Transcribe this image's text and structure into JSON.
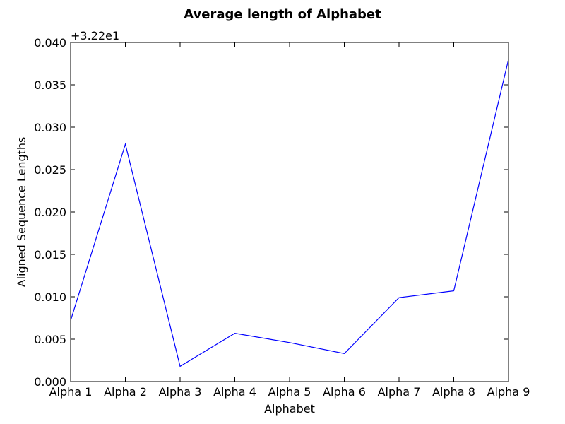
{
  "chart_data": {
    "type": "line",
    "title": "Average length of Alphabet",
    "xlabel": "Alphabet",
    "ylabel": "Aligned Sequence Lengths",
    "offset_label": "+3.22e1",
    "categories": [
      "Alpha 1",
      "Alpha 2",
      "Alpha 3",
      "Alpha 4",
      "Alpha 5",
      "Alpha 6",
      "Alpha 7",
      "Alpha 8",
      "Alpha 9"
    ],
    "series": [
      {
        "values": [
          0.0072,
          0.028,
          0.0018,
          0.0057,
          0.0046,
          0.0033,
          0.0099,
          0.0107,
          0.038
        ],
        "color": "#0000ff"
      }
    ],
    "ylim": [
      0.0,
      0.04
    ],
    "yticks": [
      "0.000",
      "0.005",
      "0.010",
      "0.015",
      "0.020",
      "0.025",
      "0.030",
      "0.035",
      "0.040"
    ],
    "grid": false,
    "legend": false
  }
}
